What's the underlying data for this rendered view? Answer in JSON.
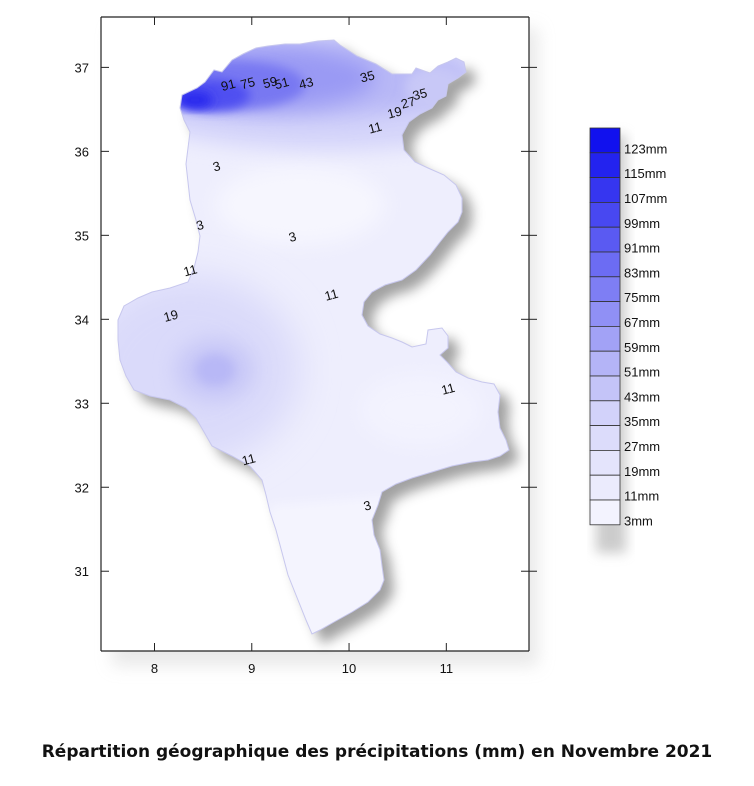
{
  "caption": "Répartition géographique des précipitations (mm) en Novembre 2021",
  "chart_data": {
    "type": "contour-map",
    "x_ticks": [
      "8",
      "9",
      "10",
      "11"
    ],
    "y_ticks": [
      "37",
      "36",
      "35",
      "34",
      "33",
      "32",
      "31"
    ],
    "x_range": [
      7.45,
      11.85
    ],
    "y_range": [
      30.05,
      37.6
    ],
    "legend": {
      "title": "",
      "levels": [
        "123mm",
        "115mm",
        "107mm",
        "99mm",
        "91mm",
        "83mm",
        "75mm",
        "67mm",
        "59mm",
        "51mm",
        "43mm",
        "35mm",
        "27mm",
        "19mm",
        "11mm",
        "3mm"
      ],
      "colors": [
        "#1111ee",
        "#2323ef",
        "#3636f0",
        "#4848f1",
        "#5a5af2",
        "#6c6cf3",
        "#7e7ef4",
        "#9090f5",
        "#a2a2f6",
        "#b4b4f7",
        "#c4c4f8",
        "#d2d2fa",
        "#dcdcfb",
        "#e4e4fc",
        "#ebebfd",
        "#f3f3fe"
      ]
    },
    "contour_labels": [
      {
        "text": "91",
        "lon": 8.77,
        "lat": 36.74
      },
      {
        "text": "75",
        "lon": 8.97,
        "lat": 36.76
      },
      {
        "text": "59",
        "lon": 9.2,
        "lat": 36.77
      },
      {
        "text": "51",
        "lon": 9.32,
        "lat": 36.76
      },
      {
        "text": "43",
        "lon": 9.57,
        "lat": 36.76
      },
      {
        "text": "35",
        "lon": 10.2,
        "lat": 36.84
      },
      {
        "text": "19",
        "lon": 10.48,
        "lat": 36.41
      },
      {
        "text": "27",
        "lon": 10.62,
        "lat": 36.53
      },
      {
        "text": "35",
        "lon": 10.74,
        "lat": 36.63
      },
      {
        "text": "11",
        "lon": 10.28,
        "lat": 36.23
      },
      {
        "text": "3",
        "lon": 8.65,
        "lat": 35.77
      },
      {
        "text": "3",
        "lon": 8.48,
        "lat": 35.07
      },
      {
        "text": "3",
        "lon": 9.43,
        "lat": 34.93
      },
      {
        "text": "11",
        "lon": 8.38,
        "lat": 34.53
      },
      {
        "text": "11",
        "lon": 9.83,
        "lat": 34.24
      },
      {
        "text": "19",
        "lon": 8.18,
        "lat": 33.99
      },
      {
        "text": "11",
        "lon": 11.03,
        "lat": 33.12
      },
      {
        "text": "11",
        "lon": 8.98,
        "lat": 32.28
      },
      {
        "text": "3",
        "lon": 10.2,
        "lat": 31.73
      }
    ]
  }
}
